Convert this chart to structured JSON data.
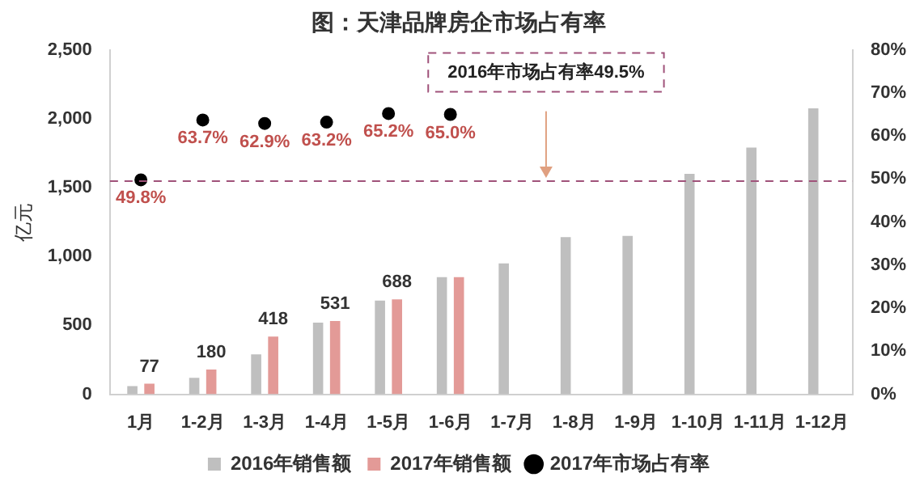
{
  "chart_data": {
    "type": "bar",
    "title": "图：天津品牌房企市场占有率",
    "ylabel": "亿元",
    "categories": [
      "1月",
      "1-2月",
      "1-3月",
      "1-4月",
      "1-5月",
      "1-6月",
      "1-7月",
      "1-8月",
      "1-9月",
      "1-10月",
      "1-11月",
      "1-12月"
    ],
    "series": [
      {
        "name": "2016年销售额",
        "color": "#bfbfbf",
        "values": [
          60,
          120,
          290,
          520,
          680,
          850,
          950,
          1140,
          1150,
          1600,
          1790,
          2075
        ]
      },
      {
        "name": "2017年销售额",
        "color": "#e39a97",
        "values": [
          77,
          180,
          418,
          531,
          688,
          850,
          null,
          null,
          null,
          null,
          null,
          null
        ],
        "value_labels": [
          "77",
          "180",
          "418",
          "531",
          "688",
          null,
          null,
          null,
          null,
          null,
          null,
          null
        ]
      },
      {
        "name": "2017年市场占有率",
        "type": "scatter",
        "axis": "y2",
        "color": "#000000",
        "x": [
          "1月",
          "1-2月",
          "1-3月",
          "1-4月",
          "1-5月",
          "1-6月"
        ],
        "values": [
          49.8,
          63.7,
          62.9,
          63.2,
          65.2,
          65.0
        ],
        "value_labels": [
          "49.8%",
          "63.7%",
          "62.9%",
          "63.2%",
          "65.2%",
          "65.0%"
        ]
      }
    ],
    "ylim": [
      0,
      2500
    ],
    "yticks": [
      0,
      500,
      {
        "value": 1000,
        "label": "1,000"
      },
      {
        "value": 1500,
        "label": "1,500"
      },
      {
        "value": 2000,
        "label": "2,000"
      },
      {
        "value": 2500,
        "label": "2,500"
      }
    ],
    "y2lim": [
      0,
      80
    ],
    "y2ticks": [
      {
        "value": 0,
        "label": "0%"
      },
      {
        "value": 10,
        "label": "10%"
      },
      {
        "value": 20,
        "label": "20%"
      },
      {
        "value": 30,
        "label": "30%"
      },
      {
        "value": 40,
        "label": "40%"
      },
      {
        "value": 50,
        "label": "50%"
      },
      {
        "value": 60,
        "label": "60%"
      },
      {
        "value": 70,
        "label": "70%"
      },
      {
        "value": 80,
        "label": "80%"
      }
    ],
    "ref_lines": [
      {
        "axis": "y2",
        "value": 49.5,
        "color": "#a0527a",
        "line_style": "dashed"
      }
    ],
    "annotations": [
      "2016年市场占有率49.5%"
    ],
    "marker": "circle",
    "grid": false,
    "legend": "bottom"
  }
}
